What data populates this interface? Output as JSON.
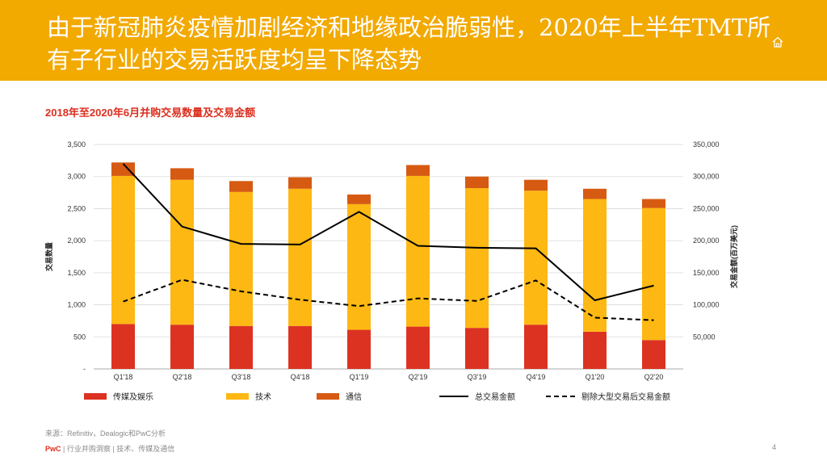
{
  "header": {
    "title": "由于新冠肺炎疫情加剧经济和地缘政治脆弱性，2020年上半年TMT所有子行业的交易活跃度均呈下降态势",
    "icon": "home-icon"
  },
  "colors": {
    "banner": "#f2a900",
    "media": "#dc3222",
    "tech": "#fdb813",
    "telecom": "#d65a12",
    "line": "#000000"
  },
  "chart_data": {
    "type": "bar",
    "title": "2018年至2020年6月并购交易数量及交易金额",
    "categories": [
      "Q1'18",
      "Q2'18",
      "Q3'18",
      "Q4'18",
      "Q1'19",
      "Q2'19",
      "Q3'19",
      "Q4'19",
      "Q1'20",
      "Q2'20"
    ],
    "series": [
      {
        "name": "传媒及娱乐",
        "kind": "bar",
        "axis": "left",
        "values": [
          700,
          690,
          670,
          670,
          610,
          660,
          640,
          690,
          580,
          450
        ]
      },
      {
        "name": "技术",
        "kind": "bar",
        "axis": "left",
        "values": [
          2310,
          2260,
          2090,
          2140,
          1960,
          2350,
          2180,
          2090,
          2070,
          2060
        ]
      },
      {
        "name": "通信",
        "kind": "bar",
        "axis": "left",
        "values": [
          210,
          180,
          170,
          180,
          150,
          170,
          180,
          170,
          160,
          140
        ]
      },
      {
        "name": "总交易金额",
        "kind": "line",
        "axis": "right",
        "values": [
          320000,
          222000,
          195000,
          194000,
          245000,
          192000,
          189000,
          188000,
          107000,
          130000
        ]
      },
      {
        "name": "剔除大型交易后交易金额",
        "kind": "dashed-line",
        "axis": "right",
        "values": [
          105000,
          139000,
          121000,
          108000,
          98000,
          110000,
          106000,
          138000,
          80000,
          76000
        ]
      }
    ],
    "ylabel": "交易数量",
    "y2label": "交易金额(百万美元)",
    "ylim": [
      0,
      3500
    ],
    "y2lim": [
      0,
      350000
    ],
    "yticks": [
      "-",
      "500",
      "1,000",
      "1,500",
      "2,000",
      "2,500",
      "3,000",
      "3,500"
    ],
    "y2ticks": [
      "",
      "50,000",
      "100,000",
      "150,000",
      "200,000",
      "250,000",
      "300,000",
      "350,000"
    ],
    "legend": [
      "传媒及娱乐",
      "技术",
      "通信",
      "总交易金额",
      "剔除大型交易后交易金额"
    ],
    "legend_position": "bottom"
  },
  "footer": {
    "source": "来源：Refinitiv，Dealogic和PwC分析",
    "brand": "PwC",
    "breadcrumb": " | 行业并购洞察 | 技术、传媒及通信",
    "page": "4"
  }
}
